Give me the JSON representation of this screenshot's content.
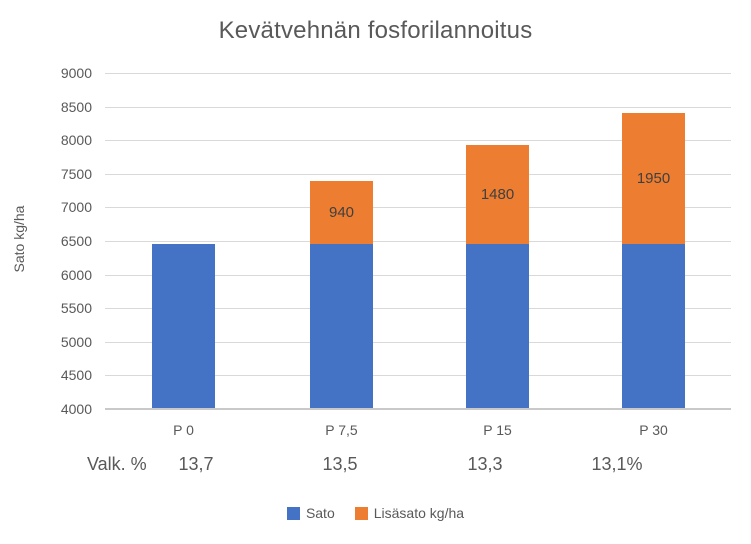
{
  "title": "Kevätvehnän fosforilannoitus",
  "chart_data": {
    "type": "bar",
    "stacked": true,
    "title": "Kevätvehnän fosforilannoitus",
    "categories": [
      "P 0",
      "P 7,5",
      "P 15",
      "P 30"
    ],
    "series": [
      {
        "name": "Sato",
        "color": "#4472C4",
        "values": [
          6450,
          6450,
          6450,
          6450
        ],
        "data_labels": [
          "",
          "",
          "",
          ""
        ]
      },
      {
        "name": "Lisäsato kg/ha",
        "color": "#ED7D31",
        "values": [
          0,
          940,
          1480,
          1950
        ],
        "data_labels": [
          "",
          "940",
          "1480",
          "1950"
        ]
      }
    ],
    "xlabel": "",
    "ylabel": "Sato kg/ha",
    "ylim": [
      4000,
      9000
    ],
    "ytick_step": 500,
    "yticks": [
      4000,
      4500,
      5000,
      5500,
      6000,
      6500,
      7000,
      7500,
      8000,
      8500,
      9000
    ],
    "grid": true,
    "legend_position": "bottom"
  },
  "extra_row": {
    "label": "Valk. %",
    "values": [
      "13,7",
      "13,5",
      "13,3",
      "13,1%"
    ]
  },
  "legend": [
    {
      "label": "Sato",
      "color": "#4472C4"
    },
    {
      "label": "Lisäsato kg/ha",
      "color": "#ED7D31"
    }
  ],
  "colors": {
    "sato": "#4472C4",
    "lisasato": "#ED7D31",
    "gridline": "#D9D9D9",
    "axis_line": "#C9C9C9",
    "text": "#595959",
    "data_label": "#404040"
  }
}
